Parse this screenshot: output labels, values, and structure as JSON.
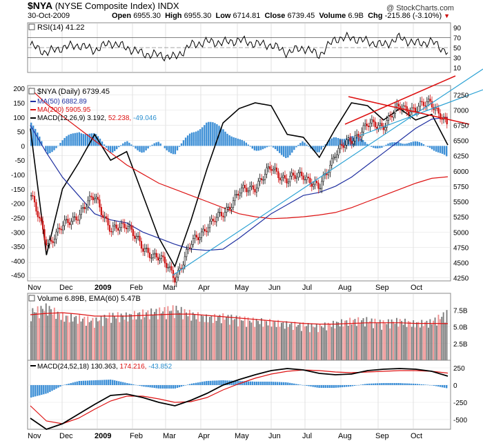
{
  "header": {
    "symbol": "$NYA",
    "name": "(NYSE Composite Index)",
    "exchange": "INDX",
    "date": "30-Oct-2009",
    "open_label": "Open",
    "open": "6955.30",
    "high_label": "High",
    "high": "6955.30",
    "low_label": "Low",
    "low": "6714.81",
    "close_label": "Close",
    "close": "6739.45",
    "volume_label": "Volume",
    "volume": "6.9B",
    "chg_label": "Chg",
    "chg": "-215.86 (-3.10%)",
    "credit": "@ StockCharts.com"
  },
  "colors": {
    "price": "#000000",
    "ma50": "#1f2fa0",
    "ma200": "#dd1111",
    "macd_hist": "#3d8fd6",
    "trend": "#2aa1d4",
    "vol_up": "#ee8f8f",
    "vol_down": "#7c7c7c",
    "grid": "#cccccc"
  },
  "rsi": {
    "label": "RSI(14) 41.22",
    "ticks": [
      "90",
      "70",
      "50",
      "30",
      "10"
    ]
  },
  "price_panel": {
    "legend": {
      "price": "$NYA (Daily) 6739.45",
      "ma50": "MA(50) 6882.89",
      "ma200": "MA(200) 5905.95",
      "macd_prefix": "MACD(12,26,9) 3.192,",
      "macd_sig": "52.238,",
      "macd_hist": "-49.046"
    },
    "right_ticks": [
      "7250",
      "7000",
      "6750",
      "6500",
      "6250",
      "6000",
      "5750",
      "5500",
      "5250",
      "5000",
      "4750",
      "4500",
      "4250"
    ],
    "left_ticks": [
      "200",
      "150",
      "100",
      "50",
      "0",
      "-50",
      "-100",
      "-150",
      "-200",
      "-250",
      "-300",
      "-350",
      "-400",
      "-450"
    ]
  },
  "months": [
    "Nov",
    "Dec",
    "2009",
    "Feb",
    "Mar",
    "Apr",
    "May",
    "Jun",
    "Jul",
    "Aug",
    "Sep",
    "Oct"
  ],
  "volume_panel": {
    "label": "Volume 6.89B, EMA(60) 5.47B",
    "ticks": [
      "7.5B",
      "5.0B",
      "2.5B"
    ]
  },
  "macd_panel": {
    "prefix": "MACD(24,52,18) 130.363,",
    "sig": "174.216,",
    "hist": "-43.852",
    "ticks": [
      "250",
      "0",
      "-250",
      "-500"
    ]
  },
  "chart_data": {
    "type": "line",
    "title": "$NYA (NYSE Composite Index) INDX Daily",
    "dates": [
      "2008-11-01",
      "2008-11-15",
      "2008-12-01",
      "2008-12-15",
      "2009-01-01",
      "2009-01-15",
      "2009-02-01",
      "2009-02-15",
      "2009-03-01",
      "2009-03-09",
      "2009-03-20",
      "2009-04-01",
      "2009-04-15",
      "2009-05-01",
      "2009-05-15",
      "2009-06-01",
      "2009-06-15",
      "2009-07-01",
      "2009-07-10",
      "2009-07-20",
      "2009-08-01",
      "2009-08-15",
      "2009-09-01",
      "2009-09-15",
      "2009-10-01",
      "2009-10-20",
      "2009-10-30"
    ],
    "close": [
      5600,
      4800,
      5100,
      5300,
      5600,
      5000,
      5150,
      4700,
      4600,
      4250,
      4800,
      5100,
      5300,
      5650,
      5750,
      6050,
      5850,
      5950,
      5700,
      6300,
      6500,
      6750,
      6750,
      7050,
      7000,
      7150,
      6740
    ],
    "ma50": [
      6750,
      6300,
      5900,
      5600,
      5300,
      5200,
      5150,
      5000,
      4900,
      4800,
      4720,
      4700,
      4720,
      4900,
      5100,
      5300,
      5450,
      5600,
      5650,
      5750,
      5900,
      6100,
      6300,
      6500,
      6700,
      6850,
      6880
    ],
    "ma200": [
      7350,
      7100,
      6900,
      6700,
      6500,
      6300,
      6100,
      5950,
      5800,
      5700,
      5600,
      5500,
      5400,
      5300,
      5250,
      5220,
      5230,
      5250,
      5280,
      5320,
      5400,
      5500,
      5600,
      5700,
      5800,
      5880,
      5906
    ],
    "price_ylim": [
      4200,
      7400
    ],
    "rsi": [
      55,
      40,
      50,
      55,
      45,
      60,
      50,
      38,
      35,
      30,
      55,
      62,
      60,
      65,
      58,
      55,
      40,
      50,
      35,
      68,
      70,
      62,
      55,
      70,
      58,
      62,
      41
    ],
    "rsi_ylim": [
      0,
      100
    ],
    "macd12_26": [
      60,
      -380,
      -150,
      -60,
      40,
      -50,
      -20,
      -170,
      -320,
      -420,
      -260,
      -80,
      80,
      130,
      150,
      140,
      40,
      30,
      -40,
      60,
      150,
      140,
      90,
      130,
      90,
      110,
      3
    ],
    "macd12_26_ylim": [
      -470,
      210
    ],
    "macd_hist_12": [
      90,
      -30,
      20,
      60,
      40,
      -20,
      10,
      -20,
      10,
      -30,
      50,
      90,
      70,
      20,
      -10,
      -10,
      -40,
      10,
      -20,
      30,
      40,
      10,
      -10,
      20,
      10,
      0,
      -49
    ],
    "volume_bn": [
      7.1,
      7.8,
      6.4,
      6.2,
      5.8,
      6.6,
      6.5,
      6.9,
      7.2,
      7.6,
      6.8,
      6.2,
      6.4,
      6.1,
      5.8,
      5.6,
      5.3,
      5.2,
      5.0,
      5.4,
      5.8,
      5.9,
      5.5,
      5.8,
      5.4,
      5.6,
      6.9
    ],
    "volume_ema60_bn": [
      6.8,
      7.0,
      7.1,
      6.9,
      6.6,
      6.6,
      6.6,
      6.7,
      6.8,
      6.9,
      6.9,
      6.7,
      6.5,
      6.3,
      6.1,
      5.9,
      5.7,
      5.5,
      5.4,
      5.4,
      5.5,
      5.6,
      5.6,
      5.6,
      5.5,
      5.5,
      5.47
    ],
    "volume_ylim": [
      0,
      10
    ],
    "macd24_52": [
      -480,
      -640,
      -560,
      -420,
      -280,
      -150,
      -130,
      -180,
      -250,
      -300,
      -220,
      -120,
      0,
      80,
      150,
      210,
      240,
      220,
      170,
      150,
      160,
      210,
      230,
      240,
      230,
      200,
      130
    ],
    "macd24_52_signal": [
      -300,
      -520,
      -560,
      -480,
      -350,
      -230,
      -160,
      -160,
      -200,
      -250,
      -240,
      -180,
      -70,
      20,
      100,
      160,
      200,
      220,
      210,
      190,
      180,
      190,
      200,
      210,
      210,
      200,
      174
    ],
    "macd24_52_ylim": [
      -640,
      360
    ]
  }
}
